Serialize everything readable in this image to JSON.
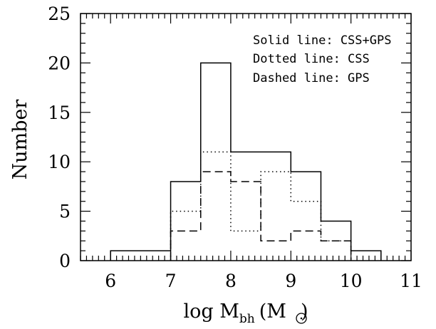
{
  "chart_data": {
    "type": "histogram",
    "xlabel": {
      "main": "log M",
      "sub": "bh",
      "unit_open": "(M",
      "unit_close": ")"
    },
    "ylabel": "Number",
    "xlim": [
      5.5,
      11
    ],
    "ylim": [
      0,
      25
    ],
    "x_ticks": [
      6,
      7,
      8,
      9,
      10,
      11
    ],
    "y_ticks": [
      0,
      5,
      10,
      15,
      20,
      25
    ],
    "grid": false,
    "legend_position": "top-right",
    "legend": [
      "Solid line: CSS+GPS",
      "Dotted line: CSS",
      "Dashed line: GPS"
    ],
    "bin_edges": [
      6.0,
      6.5,
      7.0,
      7.5,
      8.0,
      8.5,
      9.0,
      9.5,
      10.0,
      10.5
    ],
    "series": [
      {
        "style": "solid",
        "values": [
          1,
          1,
          8,
          20,
          11,
          11,
          9,
          4,
          1
        ]
      },
      {
        "style": "dotted",
        "values": [
          0,
          0,
          5,
          11,
          3,
          9,
          6,
          2,
          0
        ]
      },
      {
        "style": "dashed",
        "values": [
          0,
          0,
          3,
          9,
          8,
          2,
          3,
          2,
          0
        ]
      }
    ]
  }
}
